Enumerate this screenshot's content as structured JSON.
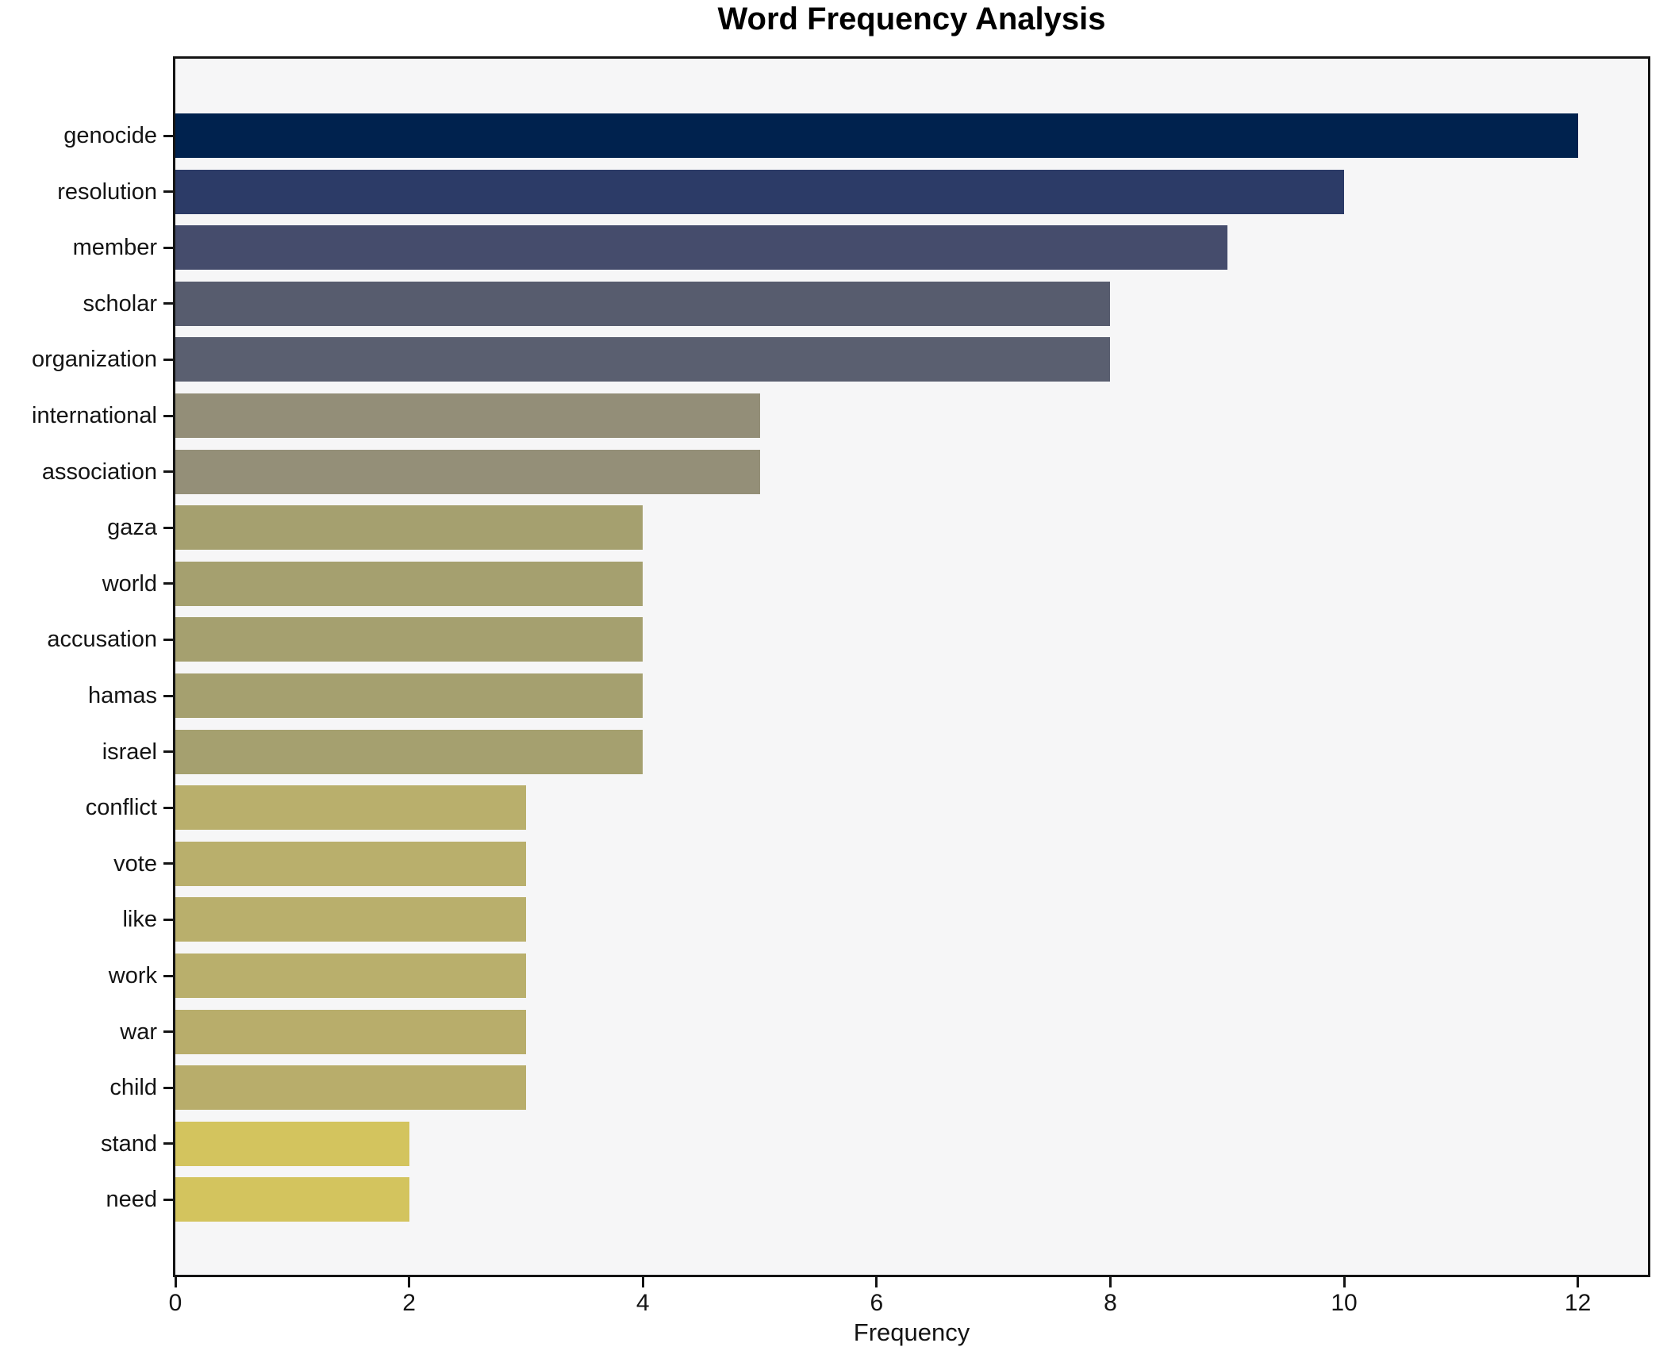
{
  "chart_data": {
    "type": "bar",
    "orientation": "horizontal",
    "title": "Word Frequency Analysis",
    "xlabel": "Frequency",
    "ylabel": "",
    "categories": [
      "genocide",
      "resolution",
      "member",
      "scholar",
      "organization",
      "international",
      "association",
      "gaza",
      "world",
      "accusation",
      "hamas",
      "israel",
      "conflict",
      "vote",
      "like",
      "work",
      "war",
      "child",
      "stand",
      "need"
    ],
    "values": [
      12,
      10,
      9,
      8,
      8,
      5,
      5,
      4,
      4,
      4,
      4,
      4,
      3,
      3,
      3,
      3,
      3,
      3,
      2,
      2
    ],
    "bar_colors": [
      "#00224e",
      "#2c3b67",
      "#454c6c",
      "#575c6e",
      "#5a5f70",
      "#938e78",
      "#948f78",
      "#a5a06f",
      "#a5a06f",
      "#a5a06f",
      "#a5a06f",
      "#a5a06f",
      "#b9af6c",
      "#b9af6c",
      "#b9af6c",
      "#b9af6c",
      "#b8ad6b",
      "#b8ad6b",
      "#d3c45e",
      "#d3c45e"
    ],
    "xticks": [
      0,
      2,
      4,
      6,
      8,
      10,
      12
    ],
    "xlim": [
      0,
      12.6
    ],
    "grid": false,
    "legend": null,
    "plot_background": "#f6f6f7",
    "axis_color": "#141414",
    "colormap": "cividis-reversed-by-value"
  }
}
